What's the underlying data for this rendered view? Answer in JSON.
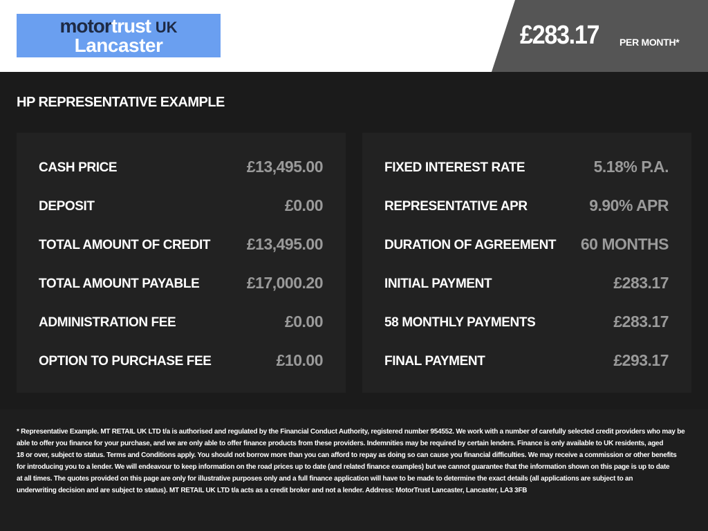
{
  "logo": {
    "text_dark": "motor",
    "text_light": "trust",
    "text_uk": "UK",
    "location": "Lancaster",
    "color": "#6a9ff0"
  },
  "header": {
    "price": "£283.17",
    "per_month": "PER MONTH*"
  },
  "title": "HP REPRESENTATIVE EXAMPLE",
  "left_rows": [
    {
      "label": "CASH PRICE",
      "value": "£13,495.00"
    },
    {
      "label": "DEPOSIT",
      "value": "£0.00"
    },
    {
      "label": "TOTAL AMOUNT OF CREDIT",
      "value": "£13,495.00"
    },
    {
      "label": "TOTAL AMOUNT PAYABLE",
      "value": "£17,000.20"
    },
    {
      "label": "ADMINISTRATION FEE",
      "value": "£0.00"
    },
    {
      "label": "OPTION TO PURCHASE FEE",
      "value": "£10.00"
    }
  ],
  "right_rows": [
    {
      "label": "FIXED INTEREST RATE",
      "value": "5.18% P.A."
    },
    {
      "label": "REPRESENTATIVE APR",
      "value": "9.90% APR"
    },
    {
      "label": "DURATION OF AGREEMENT",
      "value": "60 MONTHS"
    },
    {
      "label": "INITIAL PAYMENT",
      "value": "£283.17"
    },
    {
      "label": "58 MONTHLY PAYMENTS",
      "value": "£283.17"
    },
    {
      "label": "FINAL PAYMENT",
      "value": "£293.17"
    }
  ],
  "disclaimer_lines": [
    "* Representative Example. MT RETAIL UK LTD t/a is authorised and regulated by the Financial Conduct Authority, registered number 954552. We work with a number of carefully selected credit providers who may be",
    "able to offer you finance for your purchase, and we are only able to offer finance products from these providers. Indemnities may be required by certain lenders. Finance is only available to UK residents, aged",
    "18 or over, subject to status. Terms and Conditions apply. You should not borrow more than you can afford to repay as doing so can cause you financial difficulties. We may receive a commission or other benefits",
    "for introducing you to a lender. We will endeavour to keep information on the road prices up to date (and related finance examples) but we cannot guarantee that the information shown on this page is up to date",
    "at all times. The quotes provided on this page are only for illustrative purposes only and a full finance application will have to be made to determine the exact details (all applications are subject to an",
    "underwriting decision and are subject to status). MT RETAIL UK LTD t/a acts as a credit broker and not a lender. Address: MotorTrust Lancaster, Lancaster, LA3 3FB"
  ]
}
